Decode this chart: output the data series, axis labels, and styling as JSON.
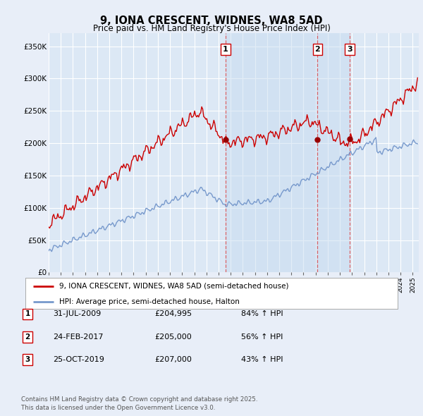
{
  "title": "9, IONA CRESCENT, WIDNES, WA8 5AD",
  "subtitle": "Price paid vs. HM Land Registry's House Price Index (HPI)",
  "ylabel_ticks": [
    "£0",
    "£50K",
    "£100K",
    "£150K",
    "£200K",
    "£250K",
    "£300K",
    "£350K"
  ],
  "ytick_vals": [
    0,
    50000,
    100000,
    150000,
    200000,
    250000,
    300000,
    350000
  ],
  "ylim": [
    0,
    370000
  ],
  "xlim_start": 1995.0,
  "xlim_end": 2025.5,
  "sale_dates": [
    2009.58,
    2017.15,
    2019.81
  ],
  "sale_prices": [
    204995,
    205000,
    207000
  ],
  "sale_labels": [
    "1",
    "2",
    "3"
  ],
  "vline_color": "#dd4444",
  "red_line_color": "#cc0000",
  "blue_line_color": "#7799cc",
  "plot_bg_color": "#dce8f5",
  "plot_grid_color": "#ffffff",
  "legend_label_red": "9, IONA CRESCENT, WIDNES, WA8 5AD (semi-detached house)",
  "legend_label_blue": "HPI: Average price, semi-detached house, Halton",
  "table_entries": [
    {
      "num": "1",
      "date": "31-JUL-2009",
      "price": "£204,995",
      "pct": "84% ↑ HPI"
    },
    {
      "num": "2",
      "date": "24-FEB-2017",
      "price": "£205,000",
      "pct": "56% ↑ HPI"
    },
    {
      "num": "3",
      "date": "25-OCT-2019",
      "price": "£207,000",
      "pct": "43% ↑ HPI"
    }
  ],
  "footer": "Contains HM Land Registry data © Crown copyright and database right 2025.\nThis data is licensed under the Open Government Licence v3.0.",
  "background_color": "#e8eef8",
  "fig_bg_color": "#e8eef8"
}
